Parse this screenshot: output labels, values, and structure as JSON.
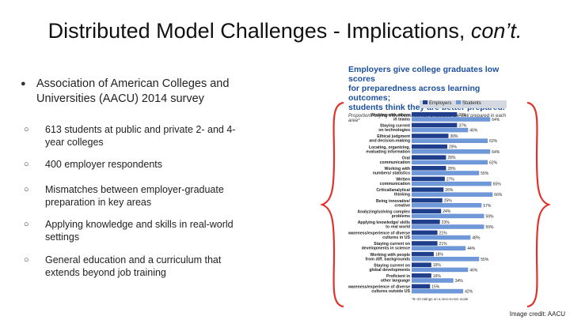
{
  "slide": {
    "title_main": "Distributed Model Challenges - Implications, ",
    "title_italic": "con’t."
  },
  "bullets": {
    "main": "Association of American Colleges and Universities (AACU) 2014 survey",
    "sub_marker": "○",
    "items": [
      "613 students at public and private 2- and 4-year colleges",
      "400 employer respondents",
      "Mismatches between employer-graduate preparation in key areas",
      "Applying knowledge and skills in real-world settings",
      "General education and a curriculum that extends beyond job training"
    ]
  },
  "figure": {
    "title_line1": "Employers give college graduates low scores",
    "title_line2": "for preparedness across learning outcomes;",
    "title_line3": "students think they are better prepared.",
    "subtitle": "Proportions saying they/recent college graduates are well prepared in each area*",
    "legend_employers": "Employers",
    "legend_students": "Students",
    "footnote": "*8–10 ratings on a zero-to-ten scale",
    "credit": "Image credit: AACU"
  },
  "chart_data": {
    "type": "bar",
    "title": "Employers give college graduates low scores for preparedness across learning outcomes; students think they are better prepared.",
    "subtitle": "Proportions saying they/recent college graduates are well prepared in each area*",
    "categories": [
      "Working with others in teams",
      "Staying current on technologies",
      "Ethical judgment and decision-making",
      "Locating, organizing, evaluating information",
      "Oral communication",
      "Working with numbers/ statistics",
      "Written communication",
      "Critical/analytical thinking",
      "Being innovative/ creative",
      "Analyzing/solving complex problems",
      "Applying knowledge/ skills to real world",
      "Awareness/experience of diverse cultures in US",
      "Staying current on developments in science",
      "Working with people from diff. backgrounds",
      "Staying current on global developments",
      "Proficient in other language",
      "Awareness/experience of diverse cultures outside US"
    ],
    "series": [
      {
        "name": "Employers",
        "values": [
          37,
          37,
          30,
          29,
          28,
          28,
          27,
          26,
          25,
          24,
          23,
          21,
          21,
          18,
          16,
          16,
          15
        ],
        "color": "#1f3e8c"
      },
      {
        "name": "Students",
        "values": [
          64,
          46,
          62,
          64,
          62,
          55,
          65,
          66,
          57,
          59,
          59,
          48,
          44,
          55,
          46,
          34,
          42
        ],
        "color": "#6f98d8"
      }
    ],
    "legend": "top",
    "footnote": "*8–10 ratings on a zero-to-ten scale"
  }
}
